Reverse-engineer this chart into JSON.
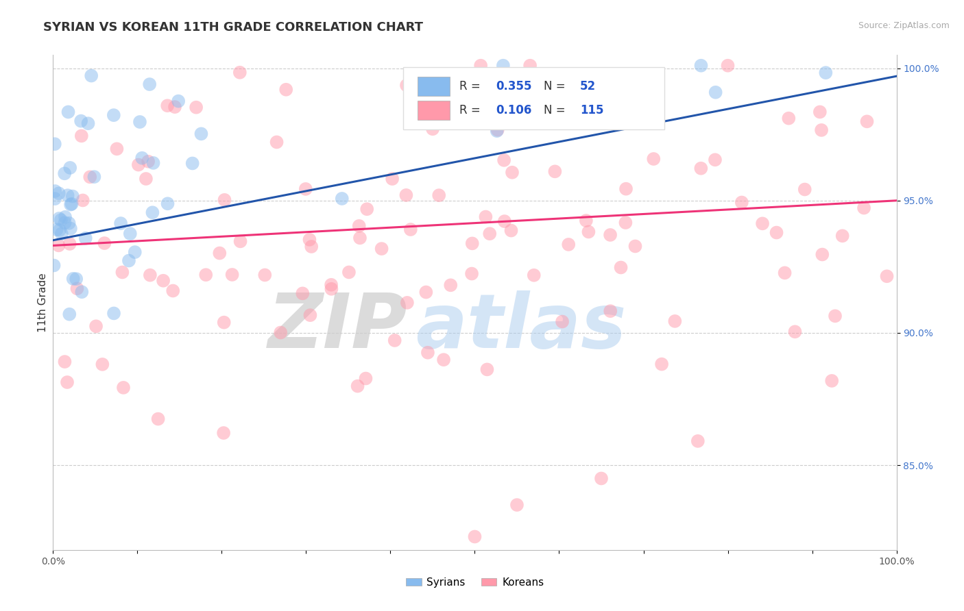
{
  "title": "SYRIAN VS KOREAN 11TH GRADE CORRELATION CHART",
  "source_text": "Source: ZipAtlas.com",
  "ylabel": "11th Grade",
  "xlim": [
    0.0,
    1.0
  ],
  "ylim": [
    0.818,
    1.005
  ],
  "xticks": [
    0.0,
    0.1,
    0.2,
    0.3,
    0.4,
    0.5,
    0.6,
    0.7,
    0.8,
    0.9,
    1.0
  ],
  "yticks": [
    0.85,
    0.9,
    0.95,
    1.0
  ],
  "ytick_labels": [
    "85.0%",
    "90.0%",
    "95.0%",
    "100.0%"
  ],
  "title_fontsize": 13,
  "axis_label_fontsize": 11,
  "tick_fontsize": 10,
  "blue_color": "#88BBEE",
  "pink_color": "#FF99AA",
  "blue_line_color": "#2255AA",
  "pink_line_color": "#EE3377",
  "legend_blue_R": "0.355",
  "legend_blue_N": "52",
  "legend_pink_R": "0.106",
  "legend_pink_N": "115",
  "legend_label_blue": "Syrians",
  "legend_label_pink": "Koreans"
}
